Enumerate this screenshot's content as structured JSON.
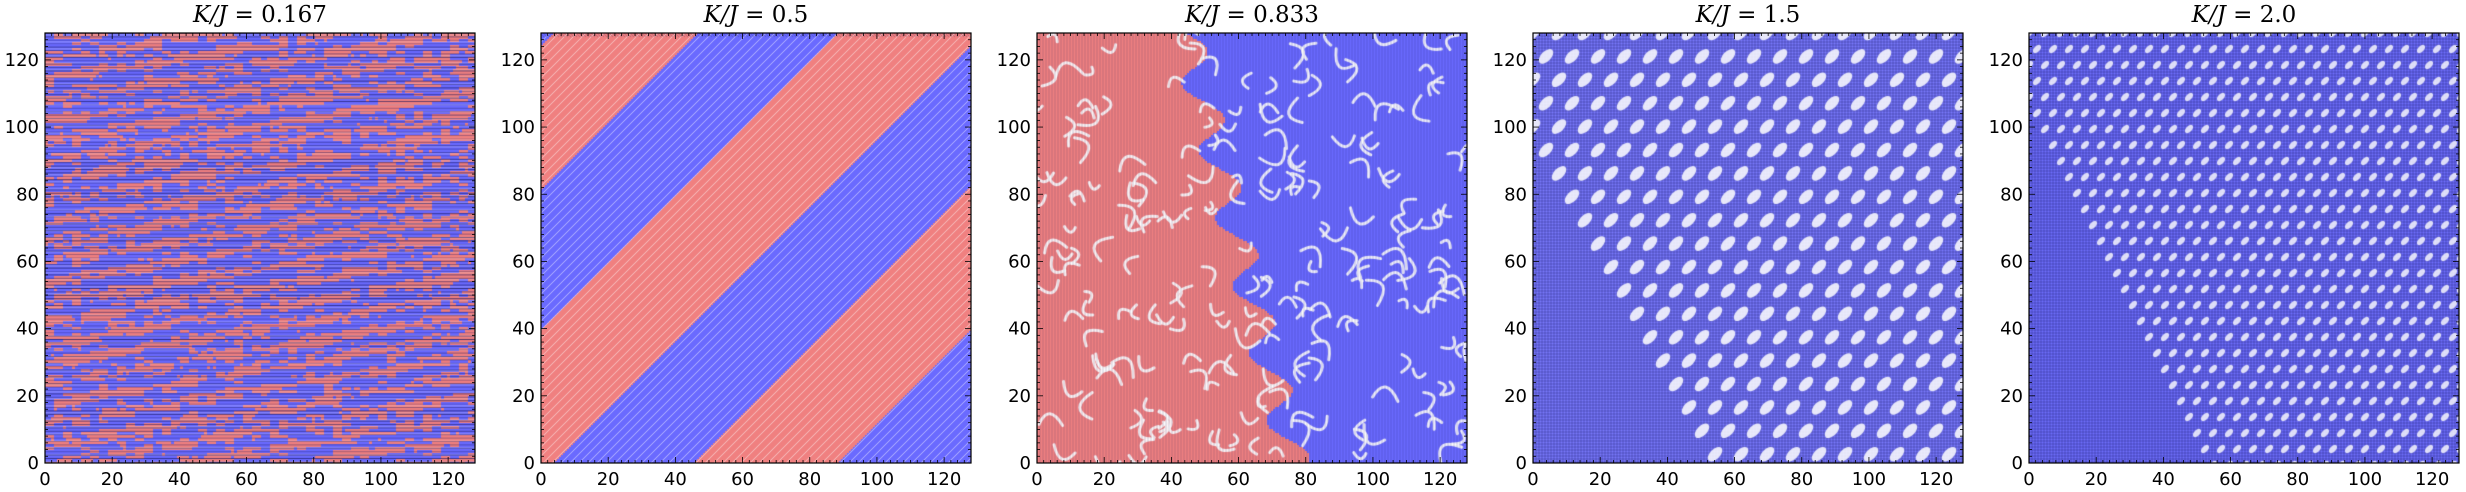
{
  "figure": {
    "panels": [
      {
        "title_prefix": "K/J",
        "title_value": "0.167"
      },
      {
        "title_prefix": "K/J",
        "title_value": "0.5"
      },
      {
        "title_prefix": "K/J",
        "title_value": "0.833"
      },
      {
        "title_prefix": "K/J",
        "title_value": "1.5"
      },
      {
        "title_prefix": "K/J",
        "title_value": "2.0"
      }
    ]
  },
  "colors": {
    "spin_up": "#f08080",
    "spin_down": "#6a6aff",
    "line": "#1a1a8a",
    "background": "#ffffff"
  },
  "chart_data": [
    {
      "type": "heatmap",
      "title": "K/J = 0.167",
      "pattern": "fine horizontal stripes, mixed red/blue",
      "xlim": [
        0,
        128
      ],
      "ylim": [
        0,
        128
      ],
      "xticks": [
        0,
        20,
        40,
        60,
        80,
        100,
        120
      ],
      "yticks": [
        0,
        20,
        40,
        60,
        80,
        100,
        120
      ]
    },
    {
      "type": "heatmap",
      "title": "K/J = 0.5",
      "pattern": "diagonal red and blue bands",
      "xlim": [
        0,
        128
      ],
      "ylim": [
        0,
        128
      ],
      "xticks": [
        0,
        20,
        40,
        60,
        80,
        100,
        120
      ],
      "yticks": [
        0,
        20,
        40,
        60,
        80,
        100,
        120
      ]
    },
    {
      "type": "heatmap",
      "title": "K/J = 0.833",
      "pattern": "red domain left, blue domain right, labyrinth texture",
      "xlim": [
        0,
        128
      ],
      "ylim": [
        0,
        128
      ],
      "xticks": [
        0,
        20,
        40,
        60,
        80,
        100,
        120
      ],
      "yticks": [
        0,
        20,
        40,
        60,
        80,
        100,
        120
      ]
    },
    {
      "type": "heatmap",
      "title": "K/J = 1.5",
      "pattern": "blue with diagonal skyrmion lattice",
      "xlim": [
        0,
        128
      ],
      "ylim": [
        0,
        128
      ],
      "xticks": [
        0,
        20,
        40,
        60,
        80,
        100,
        120
      ],
      "yticks": [
        0,
        20,
        40,
        60,
        80,
        100,
        120
      ]
    },
    {
      "type": "heatmap",
      "title": "K/J = 2.0",
      "pattern": "blue with fine diagonal lattice",
      "xlim": [
        0,
        128
      ],
      "ylim": [
        0,
        128
      ],
      "xticks": [
        0,
        20,
        40,
        60,
        80,
        100,
        120
      ],
      "yticks": [
        0,
        20,
        40,
        60,
        80,
        100,
        120
      ]
    }
  ]
}
